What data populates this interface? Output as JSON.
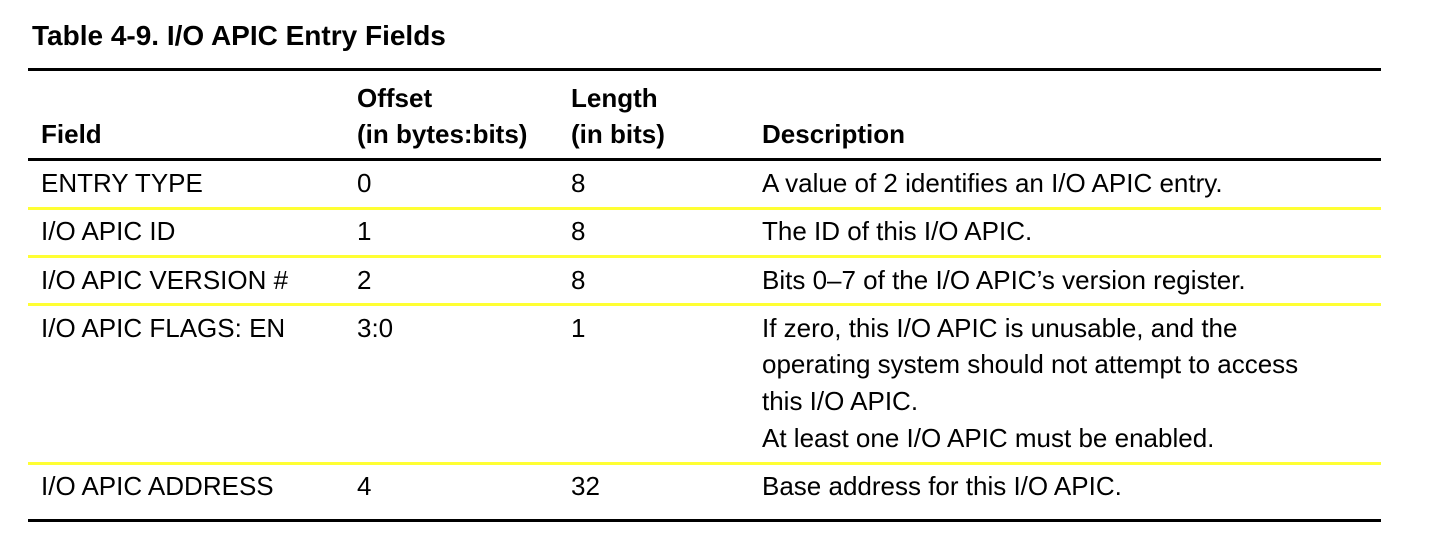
{
  "table": {
    "title": "Table 4-9.  I/O APIC Entry Fields",
    "separator_color": "#ffff33",
    "headers": {
      "field": "Field",
      "offset_line1": "Offset",
      "offset_line2": "(in bytes:bits)",
      "length_line1": "Length",
      "length_line2": "(in bits)",
      "description": "Description"
    },
    "rows": [
      {
        "field": "ENTRY TYPE",
        "offset": "0",
        "length": "8",
        "description": [
          "A value of 2 identifies an I/O APIC entry."
        ]
      },
      {
        "field": "I/O APIC ID",
        "offset": "1",
        "length": "8",
        "description": [
          "The ID of this I/O APIC."
        ]
      },
      {
        "field": "I/O APIC VERSION #",
        "offset": "2",
        "length": "8",
        "description": [
          "Bits 0–7 of the I/O APIC’s version register."
        ]
      },
      {
        "field": "I/O APIC FLAGS: EN",
        "offset": "3:0",
        "length": "1",
        "description": [
          "If zero, this I/O APIC is unusable, and the",
          "operating system should not attempt to access",
          "this I/O APIC.",
          "At least one I/O APIC must be enabled."
        ]
      },
      {
        "field": "I/O APIC ADDRESS",
        "offset": "4",
        "length": "32",
        "description": [
          "Base address for this I/O APIC."
        ]
      }
    ]
  }
}
